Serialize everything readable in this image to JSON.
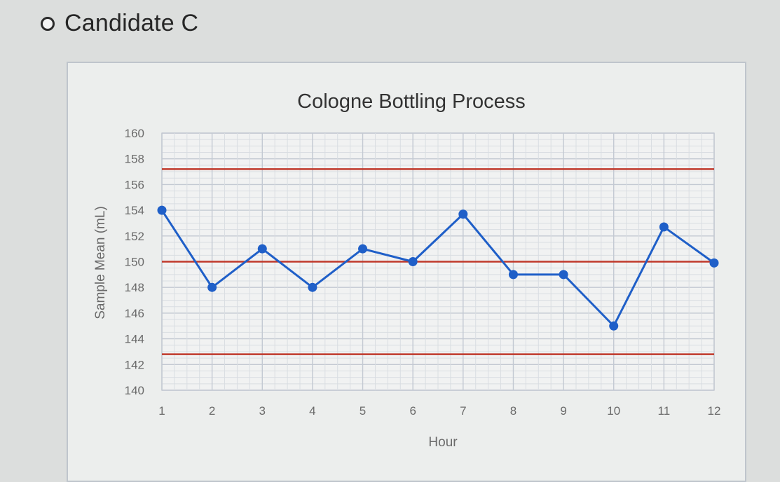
{
  "option": {
    "label": "Candidate C",
    "selected": false
  },
  "chart_data": {
    "type": "line",
    "title": "Cologne Bottling Process",
    "xlabel": "Hour",
    "ylabel": "Sample Mean (mL)",
    "x": [
      1,
      2,
      3,
      4,
      5,
      6,
      7,
      8,
      9,
      10,
      11,
      12
    ],
    "yticks": [
      160,
      158,
      156,
      154,
      152,
      150,
      148,
      146,
      144,
      142,
      140
    ],
    "ylim": [
      140,
      160
    ],
    "grid": true,
    "series": [
      {
        "values": [
          154,
          148,
          151,
          148,
          151,
          150,
          153.7,
          149,
          149,
          145,
          152.7,
          149.9
        ],
        "color": "#1f5fc8"
      }
    ],
    "reference_lines": [
      {
        "value": 157.2,
        "color": "#c0392b"
      },
      {
        "value": 150,
        "color": "#c0392b"
      },
      {
        "value": 142.8,
        "color": "#c0392b"
      }
    ]
  }
}
